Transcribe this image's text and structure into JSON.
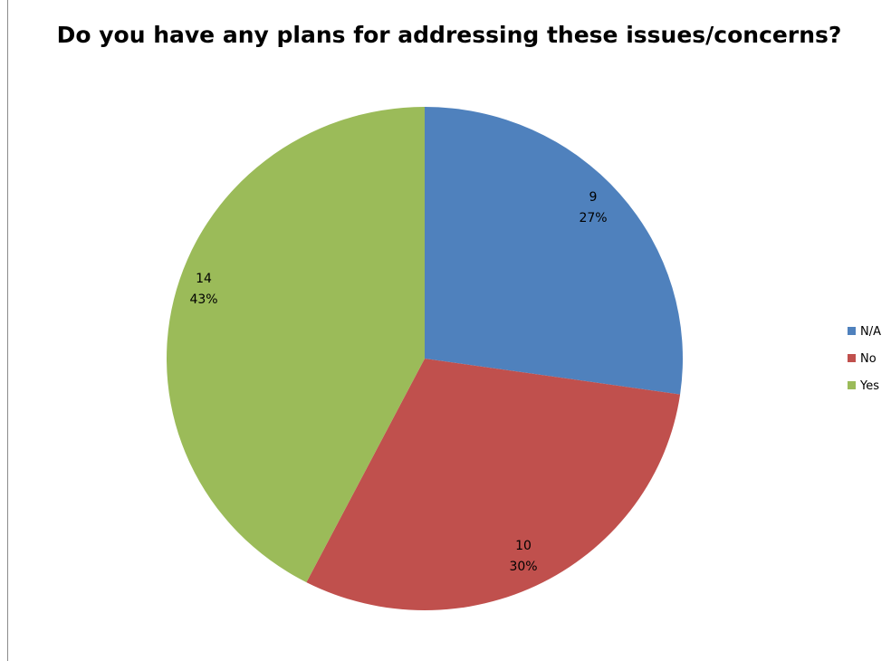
{
  "chart_data": {
    "type": "pie",
    "title": "Do you have any plans for addressing these issues/concerns?",
    "categories": [
      "N/A",
      "No",
      "Yes"
    ],
    "values": [
      9,
      10,
      14
    ],
    "percent_labels": [
      "27%",
      "30%",
      "43%"
    ],
    "colors": [
      "#4f81bd",
      "#c0504d",
      "#9bbb59"
    ],
    "legend": "right"
  }
}
